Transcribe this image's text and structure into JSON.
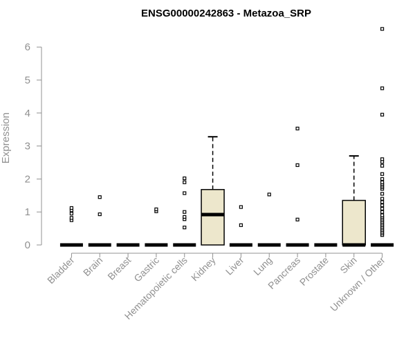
{
  "chart_data": {
    "type": "boxplot",
    "title": "ENSG00000242863 - Metazoa_SRP",
    "xlabel": "",
    "ylabel": "Expression",
    "ylim": [
      0,
      6.5
    ],
    "yticks": [
      0,
      1,
      2,
      3,
      4,
      5,
      6
    ],
    "categories": [
      "Bladder",
      "Brain",
      "Breast",
      "Gastric",
      "Hematopoietic cells",
      "Kidney",
      "Liver",
      "Lung",
      "Pancreas",
      "Prostate",
      "Skin",
      "Unknown / Other"
    ],
    "box_fill": "#ede7cc",
    "boxes": [
      {
        "category": "Bladder",
        "min": 0,
        "q1": 0,
        "median": 0,
        "q3": 0,
        "max": 0,
        "outliers": [
          0.75,
          0.82,
          0.95,
          1.05,
          1.12
        ]
      },
      {
        "category": "Brain",
        "min": 0,
        "q1": 0,
        "median": 0,
        "q3": 0,
        "max": 0,
        "outliers": [
          0.93,
          1.45
        ]
      },
      {
        "category": "Breast",
        "min": 0,
        "q1": 0,
        "median": 0,
        "q3": 0,
        "max": 0,
        "outliers": []
      },
      {
        "category": "Gastric",
        "min": 0,
        "q1": 0,
        "median": 0,
        "q3": 0,
        "max": 0,
        "outliers": [
          1.02,
          1.08
        ]
      },
      {
        "category": "Hematopoietic cells",
        "min": 0,
        "q1": 0,
        "median": 0,
        "q3": 0,
        "max": 0,
        "outliers": [
          0.53,
          0.78,
          0.85,
          1.0,
          1.57,
          1.9,
          2.02
        ]
      },
      {
        "category": "Kidney",
        "min": 0,
        "q1": 0,
        "median": 0.92,
        "q3": 1.68,
        "max": 3.28,
        "outliers": []
      },
      {
        "category": "Liver",
        "min": 0,
        "q1": 0,
        "median": 0,
        "q3": 0,
        "max": 0,
        "outliers": [
          0.6,
          1.15
        ]
      },
      {
        "category": "Lung",
        "min": 0,
        "q1": 0,
        "median": 0,
        "q3": 0,
        "max": 0,
        "outliers": [
          1.53
        ]
      },
      {
        "category": "Pancreas",
        "min": 0,
        "q1": 0,
        "median": 0,
        "q3": 0,
        "max": 0,
        "outliers": [
          0.77,
          2.42,
          3.53
        ]
      },
      {
        "category": "Prostate",
        "min": 0,
        "q1": 0,
        "median": 0,
        "q3": 0,
        "max": 0,
        "outliers": []
      },
      {
        "category": "Skin",
        "min": 0,
        "q1": 0,
        "median": 0,
        "q3": 1.35,
        "max": 2.7,
        "outliers": []
      },
      {
        "category": "Unknown / Other",
        "min": 0,
        "q1": 0,
        "median": 0,
        "q3": 0,
        "max": 0,
        "outliers": [
          0.3,
          0.35,
          0.4,
          0.45,
          0.5,
          0.55,
          0.6,
          0.65,
          0.7,
          0.75,
          0.8,
          0.85,
          0.9,
          1.0,
          1.1,
          1.2,
          1.3,
          1.4,
          1.55,
          1.7,
          1.75,
          1.8,
          1.85,
          1.9,
          2.0,
          2.15,
          2.4,
          2.52,
          2.6,
          3.95,
          4.75,
          6.55
        ]
      }
    ]
  }
}
